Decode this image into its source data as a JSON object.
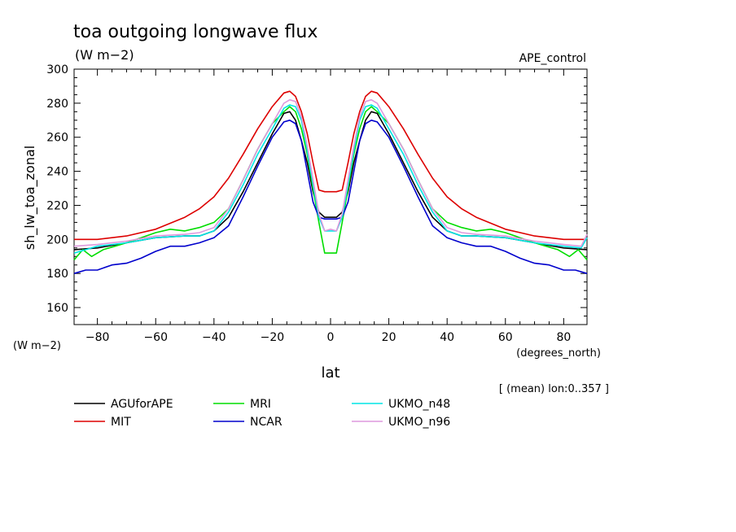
{
  "chart_data": {
    "type": "line",
    "title": "toa outgoing longwave flux",
    "units": "(W m−2)",
    "experiment": "APE_control",
    "xlabel": "lat",
    "xunits": "(degrees_north)",
    "ylabel": "sh_lw_toa_zonal",
    "yunits": "(W m−2)",
    "footnote": "[ (mean) lon:0..357 ]",
    "xlim": [
      -88,
      88
    ],
    "ylim": [
      150,
      300
    ],
    "xticks": [
      -80,
      -60,
      -40,
      -20,
      0,
      20,
      40,
      60,
      80
    ],
    "yticks": [
      160,
      180,
      200,
      220,
      240,
      260,
      280,
      300
    ],
    "grid": false,
    "legend_position": "bottom",
    "series": [
      {
        "name": "AGUforAPE",
        "color": "#000000",
        "x": [
          -88,
          -80,
          -70,
          -60,
          -50,
          -45,
          -40,
          -35,
          -30,
          -25,
          -20,
          -16,
          -14,
          -12,
          -10,
          -8,
          -6,
          -4,
          -2,
          0,
          2,
          4,
          6,
          8,
          10,
          12,
          14,
          16,
          20,
          25,
          30,
          35,
          40,
          45,
          50,
          60,
          70,
          80,
          88
        ],
        "y": [
          194,
          195,
          198,
          201,
          202,
          202,
          205,
          213,
          228,
          245,
          262,
          274,
          275,
          270,
          258,
          245,
          228,
          216,
          213,
          213,
          213,
          216,
          228,
          245,
          258,
          270,
          275,
          274,
          262,
          245,
          228,
          213,
          205,
          202,
          202,
          201,
          198,
          195,
          194
        ]
      },
      {
        "name": "MIT",
        "color": "#dd0000",
        "x": [
          -88,
          -80,
          -70,
          -60,
          -50,
          -45,
          -40,
          -35,
          -30,
          -25,
          -20,
          -16,
          -14,
          -12,
          -10,
          -8,
          -6,
          -4,
          -2,
          0,
          2,
          4,
          6,
          8,
          10,
          12,
          14,
          16,
          20,
          25,
          30,
          35,
          40,
          45,
          50,
          60,
          70,
          80,
          88
        ],
        "y": [
          200,
          200,
          202,
          206,
          213,
          218,
          225,
          236,
          250,
          265,
          278,
          286,
          287,
          284,
          275,
          262,
          245,
          229,
          228,
          228,
          228,
          229,
          245,
          262,
          275,
          284,
          287,
          286,
          278,
          265,
          250,
          236,
          225,
          218,
          213,
          206,
          202,
          200,
          200
        ]
      },
      {
        "name": "MRI",
        "color": "#00dd00",
        "x": [
          -88,
          -85,
          -82,
          -78,
          -74,
          -70,
          -65,
          -60,
          -55,
          -50,
          -45,
          -40,
          -35,
          -30,
          -25,
          -20,
          -16,
          -14,
          -12,
          -10,
          -8,
          -6,
          -4,
          -2,
          0,
          2,
          4,
          6,
          8,
          10,
          12,
          14,
          16,
          20,
          25,
          30,
          35,
          40,
          45,
          50,
          55,
          60,
          65,
          70,
          74,
          78,
          82,
          85,
          88
        ],
        "y": [
          188,
          194,
          190,
          194,
          196,
          198,
          201,
          204,
          206,
          205,
          207,
          210,
          218,
          235,
          253,
          268,
          275,
          278,
          275,
          265,
          250,
          230,
          210,
          192,
          192,
          192,
          210,
          230,
          250,
          265,
          275,
          278,
          275,
          268,
          253,
          235,
          218,
          210,
          207,
          205,
          206,
          204,
          201,
          198,
          196,
          194,
          190,
          194,
          188
        ]
      },
      {
        "name": "NCAR",
        "color": "#0000cc",
        "x": [
          -88,
          -84,
          -80,
          -75,
          -70,
          -65,
          -60,
          -55,
          -50,
          -45,
          -40,
          -35,
          -30,
          -25,
          -20,
          -16,
          -14,
          -12,
          -10,
          -8,
          -6,
          -4,
          -2,
          0,
          2,
          4,
          6,
          8,
          10,
          12,
          14,
          16,
          20,
          25,
          30,
          35,
          40,
          45,
          50,
          55,
          60,
          65,
          70,
          75,
          80,
          84,
          88
        ],
        "y": [
          180,
          182,
          182,
          185,
          186,
          189,
          193,
          196,
          196,
          198,
          201,
          208,
          225,
          243,
          260,
          269,
          270,
          268,
          258,
          240,
          222,
          213,
          212,
          212,
          212,
          213,
          222,
          240,
          258,
          268,
          270,
          269,
          260,
          243,
          225,
          208,
          201,
          198,
          196,
          196,
          193,
          189,
          186,
          185,
          182,
          182,
          180
        ]
      },
      {
        "name": "UKMO_n48",
        "color": "#00e6e6",
        "x": [
          -88,
          -80,
          -70,
          -60,
          -50,
          -45,
          -40,
          -35,
          -30,
          -25,
          -20,
          -16,
          -14,
          -12,
          -10,
          -8,
          -6,
          -4,
          -2,
          0,
          2,
          4,
          6,
          8,
          10,
          12,
          14,
          16,
          20,
          25,
          30,
          35,
          40,
          45,
          50,
          60,
          70,
          80,
          86,
          88
        ],
        "y": [
          192,
          196,
          198,
          201,
          202,
          202,
          205,
          216,
          232,
          250,
          265,
          277,
          279,
          278,
          270,
          252,
          232,
          213,
          205,
          205,
          205,
          213,
          232,
          252,
          270,
          278,
          279,
          277,
          265,
          250,
          232,
          216,
          205,
          202,
          202,
          201,
          198,
          196,
          195,
          201
        ]
      },
      {
        "name": "UKMO_n96",
        "color": "#dd99dd",
        "x": [
          -88,
          -80,
          -70,
          -60,
          -50,
          -45,
          -40,
          -35,
          -30,
          -25,
          -20,
          -16,
          -14,
          -12,
          -10,
          -8,
          -6,
          -4,
          -2,
          0,
          2,
          4,
          6,
          8,
          10,
          12,
          14,
          16,
          20,
          25,
          30,
          35,
          40,
          45,
          50,
          60,
          70,
          80,
          86,
          88
        ],
        "y": [
          196,
          197,
          199,
          202,
          203,
          204,
          207,
          218,
          235,
          253,
          268,
          280,
          282,
          281,
          272,
          255,
          235,
          215,
          205,
          206,
          205,
          215,
          235,
          255,
          272,
          281,
          282,
          280,
          268,
          253,
          235,
          218,
          207,
          204,
          203,
          202,
          199,
          197,
          196,
          203
        ]
      }
    ]
  }
}
